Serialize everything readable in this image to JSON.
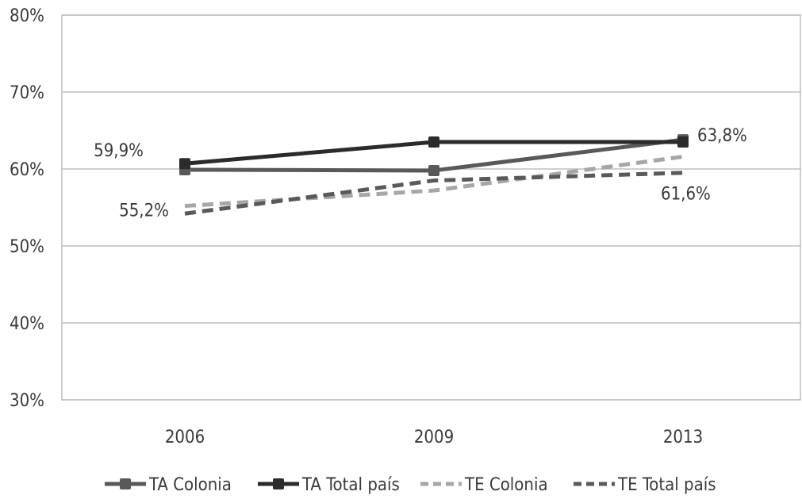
{
  "chart_data": {
    "type": "line",
    "title": "",
    "xlabel": "",
    "ylabel": "",
    "categories": [
      "2006",
      "2009",
      "2013"
    ],
    "ylim": [
      0.3,
      0.8
    ],
    "yticks": [
      0.3,
      0.4,
      0.5,
      0.6,
      0.7,
      0.8
    ],
    "ytick_labels": [
      "30%",
      "40%",
      "50%",
      "60%",
      "70%",
      "80%"
    ],
    "grid": true,
    "legend_position": "bottom",
    "series": [
      {
        "name": "TA Colonia",
        "values": [
          0.599,
          0.598,
          0.638
        ],
        "color": "#595959",
        "dashed": false,
        "marker": "square"
      },
      {
        "name": "TA Total país",
        "values": [
          0.607,
          0.635,
          0.635
        ],
        "color": "#2b2b2b",
        "dashed": false,
        "marker": "square"
      },
      {
        "name": "TE Colonia",
        "values": [
          0.552,
          0.572,
          0.616
        ],
        "color": "#a6a6a6",
        "dashed": true,
        "marker": "none"
      },
      {
        "name": "TE Total país",
        "values": [
          0.542,
          0.585,
          0.595
        ],
        "color": "#595959",
        "dashed": true,
        "marker": "none"
      }
    ],
    "annotations": [
      {
        "text": "59,9%",
        "series": 0,
        "index": 0
      },
      {
        "text": "55,2%",
        "series": 2,
        "index": 0
      },
      {
        "text": "63,8%",
        "series": 0,
        "index": 2
      },
      {
        "text": "61,6%",
        "series": 2,
        "index": 2
      }
    ]
  }
}
